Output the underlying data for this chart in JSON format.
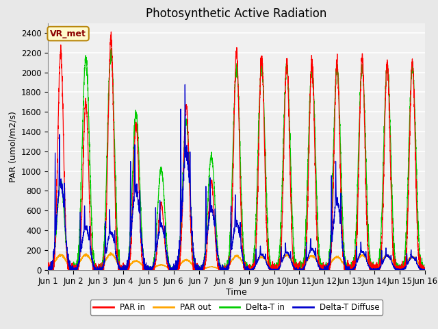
{
  "title": "Photosynthetic Active Radiation",
  "ylabel": "PAR (umol/m2/s)",
  "xlabel": "Time",
  "annotation": "VR_met",
  "ylim": [
    0,
    2500
  ],
  "xlim": [
    0,
    15
  ],
  "yticks": [
    0,
    200,
    400,
    600,
    800,
    1000,
    1200,
    1400,
    1600,
    1800,
    2000,
    2200,
    2400
  ],
  "xtick_labels": [
    "Jun 1",
    "Jun 2",
    "Jun 3",
    "Jun 4",
    "Jun 5",
    "Jun 6",
    "Jun 7",
    "Jun 8",
    "Jun 9",
    "Jun 10",
    "Jun 11",
    "Jun 12",
    "Jun 13",
    "Jun 14",
    "Jun 15",
    "Jun 16"
  ],
  "xtick_positions": [
    0,
    1,
    2,
    3,
    4,
    5,
    6,
    7,
    8,
    9,
    10,
    11,
    12,
    13,
    14,
    15
  ],
  "colors": {
    "par_in": "#FF0000",
    "par_out": "#FFA500",
    "delta_t_in": "#00CC00",
    "delta_t_diffuse": "#0000CC"
  },
  "background_color": "#E8E8E8",
  "plot_bg_color": "#F0F0F0",
  "grid_color": "#FFFFFF",
  "title_fontsize": 12,
  "label_fontsize": 9,
  "tick_fontsize": 8.5
}
